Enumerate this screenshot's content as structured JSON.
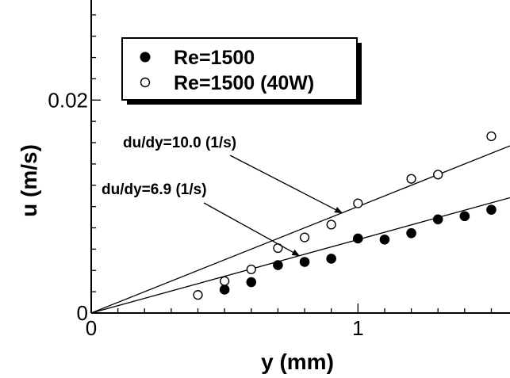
{
  "chart_data": {
    "type": "scatter",
    "xlabel": "y (mm)",
    "ylabel": "u (m/s)",
    "xlim": [
      0,
      1.57
    ],
    "ylim": [
      0,
      0.0294
    ],
    "x_ticks": [
      {
        "value": 0,
        "label": "0"
      },
      {
        "value": 1,
        "label": "1"
      }
    ],
    "y_ticks": [
      {
        "value": 0,
        "label": "0"
      },
      {
        "value": 0.02,
        "label": "0.02"
      }
    ],
    "x_minor_step": 0.1,
    "y_minor_step": 0.002,
    "grid": false,
    "legend_position": "top-left",
    "series": [
      {
        "name": "Re=1500",
        "marker": "filled-circle",
        "color": "#000000",
        "x": [
          0.5,
          0.6,
          0.7,
          0.8,
          0.9,
          1.0,
          1.1,
          1.2,
          1.3,
          1.4,
          1.5
        ],
        "y": [
          0.0022,
          0.0029,
          0.0045,
          0.0048,
          0.0051,
          0.007,
          0.0069,
          0.0075,
          0.0088,
          0.0091,
          0.0097
        ]
      },
      {
        "name": "Re=1500 (40W)",
        "marker": "open-circle",
        "color": "#000000",
        "x": [
          0.4,
          0.5,
          0.6,
          0.7,
          0.8,
          0.9,
          1.0,
          1.2,
          1.3,
          1.5
        ],
        "y": [
          0.0017,
          0.003,
          0.0041,
          0.0061,
          0.0071,
          0.0083,
          0.0103,
          0.0126,
          0.013,
          0.0166
        ]
      }
    ],
    "fit_lines": [
      {
        "slope_label": "du/dy=10.0 (1/s)",
        "slope": 0.01
      },
      {
        "slope_label": "du/dy=6.9 (1/s)",
        "slope": 0.0069
      }
    ],
    "annotations": [
      {
        "text": "du/dy=10.0 (1/s)",
        "target_line": 0,
        "target_x": 0.94
      },
      {
        "text": "du/dy=6.9 (1/s)",
        "target_line": 1,
        "target_x": 0.78
      }
    ]
  }
}
